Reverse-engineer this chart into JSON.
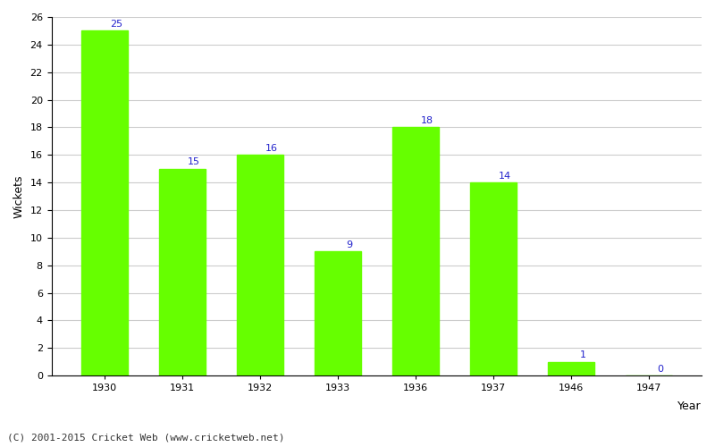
{
  "years": [
    "1930",
    "1931",
    "1932",
    "1933",
    "1936",
    "1937",
    "1946",
    "1947"
  ],
  "wickets": [
    25,
    15,
    16,
    9,
    18,
    14,
    1,
    0
  ],
  "bar_color": "#66ff00",
  "bar_edge_color": "#66ff00",
  "label_color": "#2222cc",
  "xlabel": "Year",
  "ylabel": "Wickets",
  "ylim": [
    0,
    26
  ],
  "yticks": [
    0,
    2,
    4,
    6,
    8,
    10,
    12,
    14,
    16,
    18,
    20,
    22,
    24,
    26
  ],
  "footer": "(C) 2001-2015 Cricket Web (www.cricketweb.net)",
  "background_color": "#ffffff",
  "grid_color": "#cccccc",
  "label_fontsize": 8,
  "axis_label_fontsize": 9,
  "tick_fontsize": 8,
  "footer_fontsize": 8
}
